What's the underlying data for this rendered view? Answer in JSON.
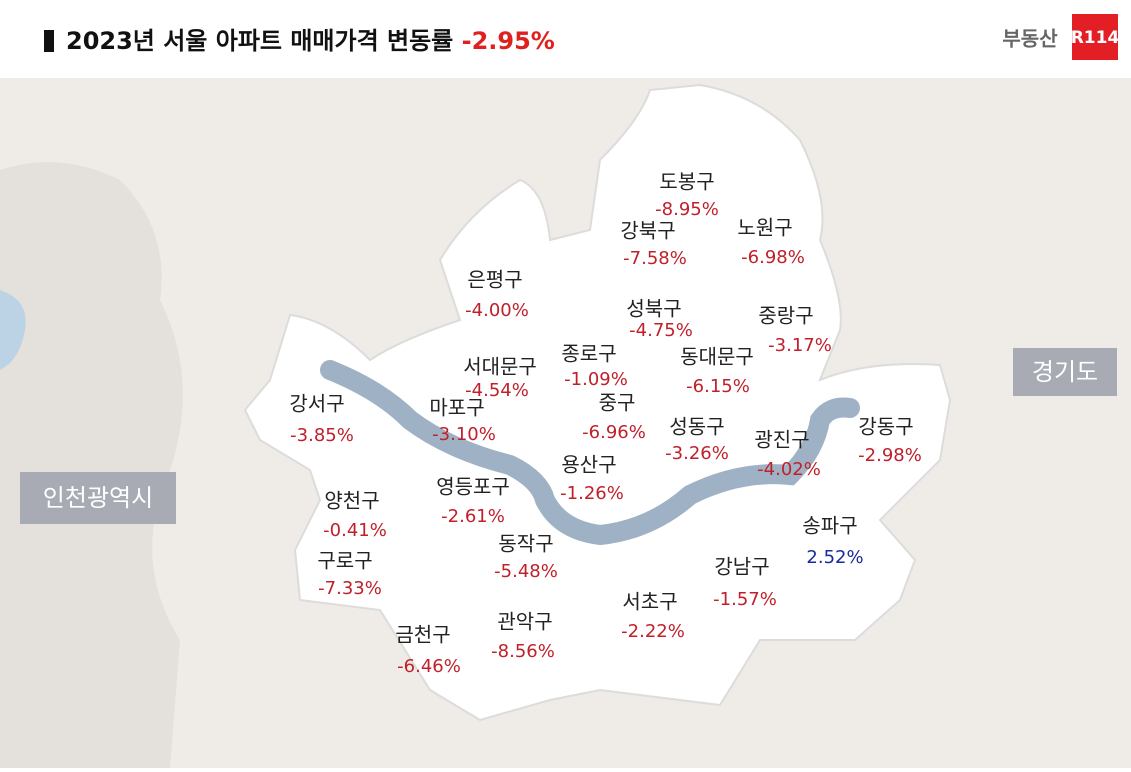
{
  "header": {
    "title": "2023년 서울 아파트 매매가격 변동률",
    "total": "-2.95%",
    "total_color": "#e0201f"
  },
  "logo": {
    "text": "부동산",
    "badge": "R114"
  },
  "regions": [
    "경기도",
    "인천광역시"
  ],
  "districts": [
    {
      "name": "도봉구",
      "change": "-8.95%",
      "color": "#c0202a"
    },
    {
      "name": "강북구",
      "change": "-7.58%",
      "color": "#c0202a"
    },
    {
      "name": "노원구",
      "change": "-6.98%",
      "color": "#c0202a"
    },
    {
      "name": "은평구",
      "change": "-4.00%",
      "color": "#c0202a"
    },
    {
      "name": "성북구",
      "change": "-4.75%",
      "color": "#c0202a"
    },
    {
      "name": "중랑구",
      "change": "-3.17%",
      "color": "#c0202a"
    },
    {
      "name": "종로구",
      "change": "-1.09%",
      "color": "#c0202a"
    },
    {
      "name": "서대문구",
      "change": "-4.54%",
      "color": "#c0202a"
    },
    {
      "name": "동대문구",
      "change": "-6.15%",
      "color": "#c0202a"
    },
    {
      "name": "강서구",
      "change": "-3.85%",
      "color": "#c0202a"
    },
    {
      "name": "마포구",
      "change": "-3.10%",
      "color": "#c0202a"
    },
    {
      "name": "중구",
      "change": "-6.96%",
      "color": "#c0202a"
    },
    {
      "name": "성동구",
      "change": "-3.26%",
      "color": "#c0202a"
    },
    {
      "name": "광진구",
      "change": "-4.02%",
      "color": "#c0202a"
    },
    {
      "name": "강동구",
      "change": "-2.98%",
      "color": "#c0202a"
    },
    {
      "name": "용산구",
      "change": "-1.26%",
      "color": "#c0202a"
    },
    {
      "name": "영등포구",
      "change": "-2.61%",
      "color": "#c0202a"
    },
    {
      "name": "양천구",
      "change": "-0.41%",
      "color": "#c0202a"
    },
    {
      "name": "송파구",
      "change": "2.52%",
      "color": "#1a2a9a"
    },
    {
      "name": "동작구",
      "change": "-5.48%",
      "color": "#c0202a"
    },
    {
      "name": "구로구",
      "change": "-7.33%",
      "color": "#c0202a"
    },
    {
      "name": "강남구",
      "change": "-1.57%",
      "color": "#c0202a"
    },
    {
      "name": "서초구",
      "change": "-2.22%",
      "color": "#c0202a"
    },
    {
      "name": "관악구",
      "change": "-8.56%",
      "color": "#c0202a"
    },
    {
      "name": "금천구",
      "change": "-6.46%",
      "color": "#c0202a"
    }
  ]
}
